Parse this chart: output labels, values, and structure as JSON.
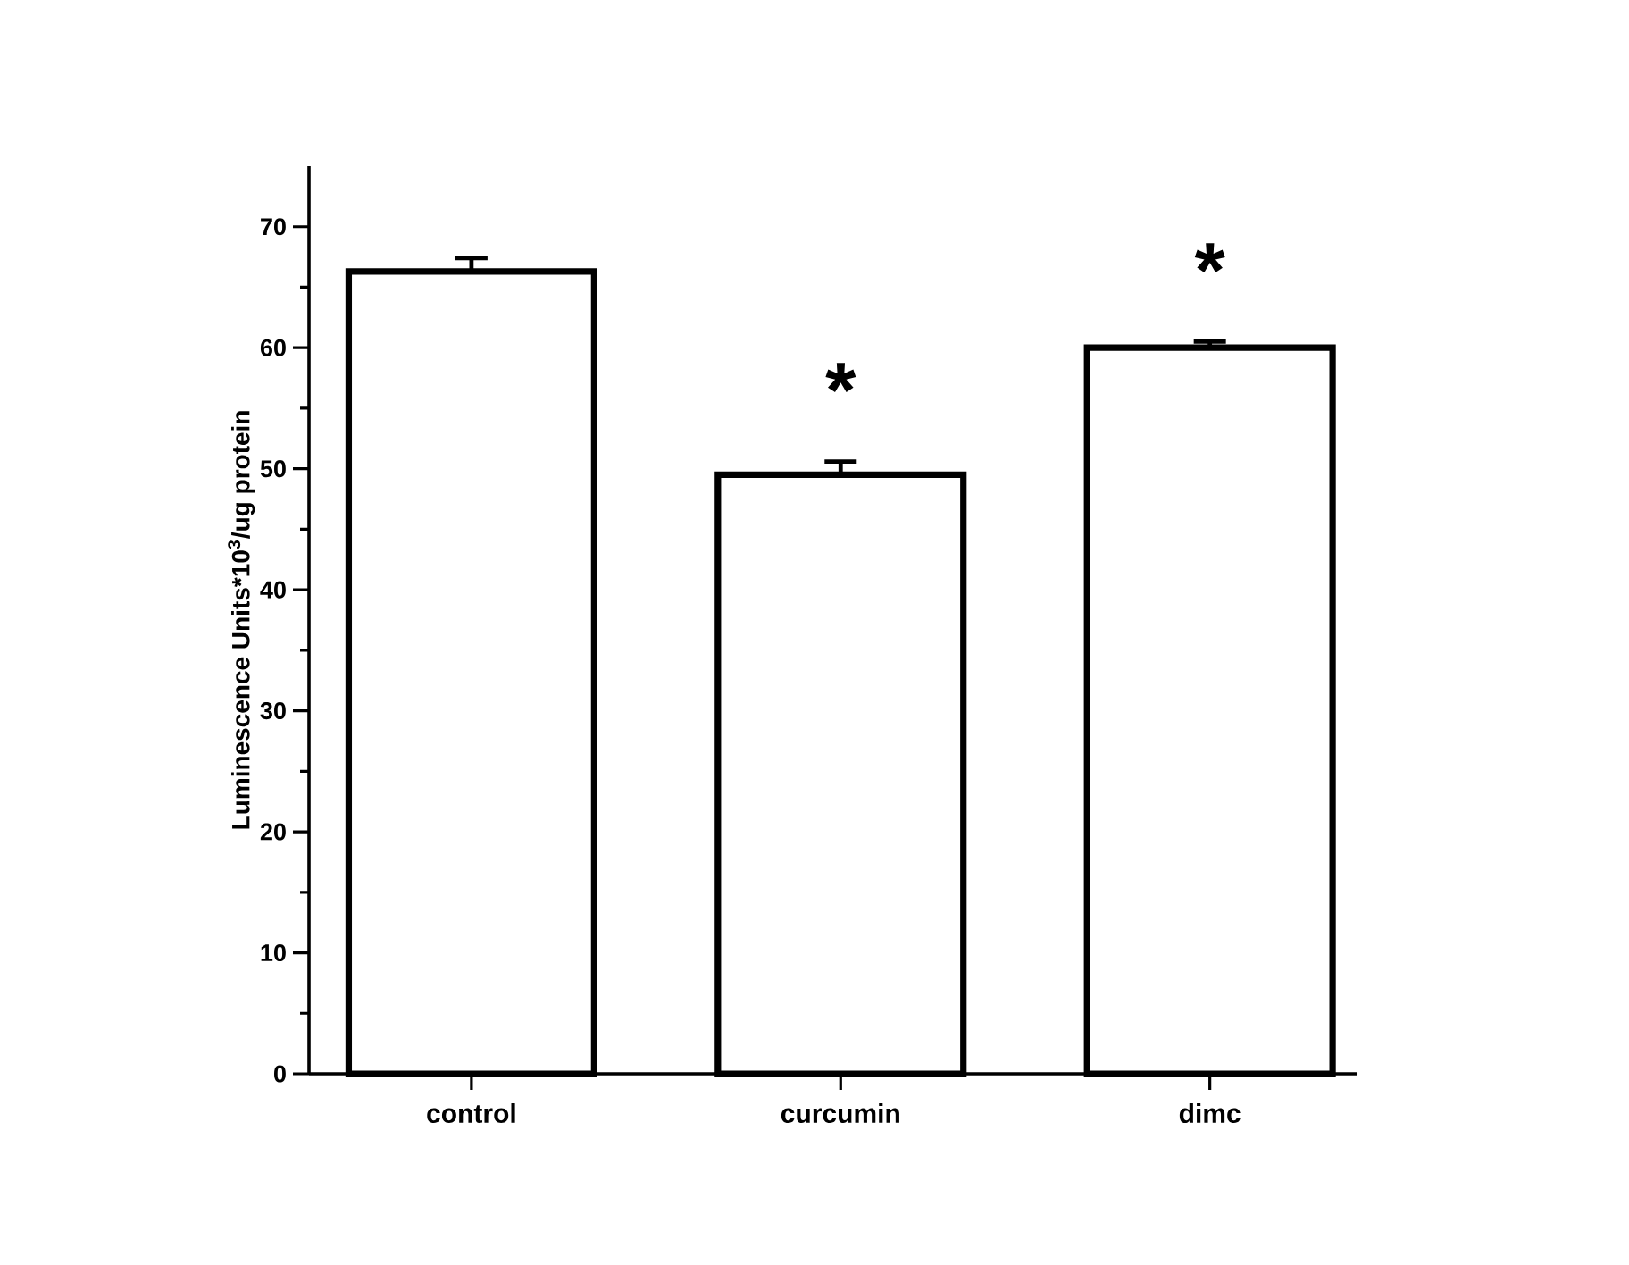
{
  "chart_data": {
    "type": "bar",
    "ylabel": "Luminescence Units*10$^{3}$/ug protein",
    "categories": [
      "control",
      "curcumin",
      "dimc"
    ],
    "values": [
      66.3,
      49.5,
      60.0
    ],
    "errors": [
      [
        66.3,
        67.4
      ],
      [
        49.5,
        50.6
      ],
      [
        60.0,
        60.5
      ]
    ],
    "color": "#ffffff",
    "ylim": [
      0,
      75
    ],
    "yticks": [
      0,
      10,
      20,
      30,
      40,
      50,
      60,
      70
    ],
    "annotations": [
      "*",
      "*"
    ]
  }
}
